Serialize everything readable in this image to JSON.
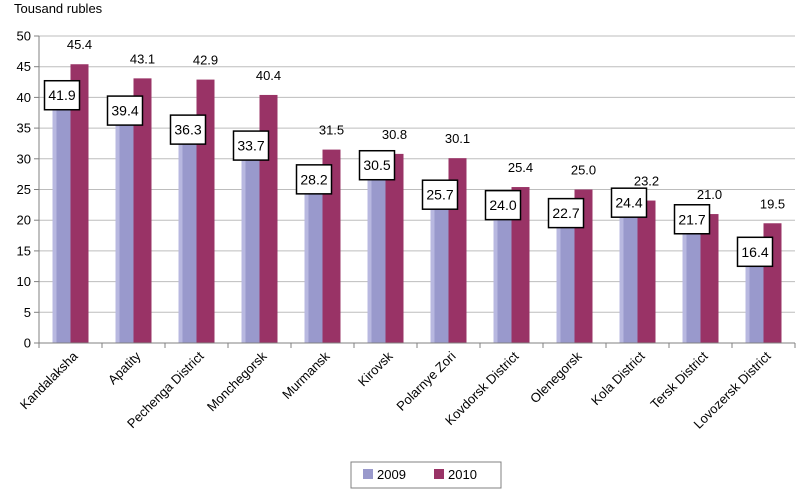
{
  "chart_data": {
    "type": "bar",
    "ylabel": "Tousand rubles",
    "ylim": [
      0,
      50
    ],
    "yticks": [
      "0",
      "5",
      "10",
      "15",
      "20",
      "25",
      "30",
      "35",
      "40",
      "45",
      "50"
    ],
    "categories": [
      "Kandalaksha",
      "Apatity",
      "Pechenga District",
      "Monchegorsk",
      "Murmansk",
      "Kirovsk",
      "Polarnye Zori",
      "Kovdorsk District",
      "Olenegorsk",
      "Kola District",
      "Tersk District",
      "Lovozersk District"
    ],
    "series": [
      {
        "name": "2009",
        "color": "#9999CC",
        "values": [
          41.9,
          39.4,
          36.3,
          33.7,
          28.2,
          30.5,
          25.7,
          24.0,
          22.7,
          24.4,
          21.7,
          16.4
        ],
        "labels": [
          "41.9",
          "39.4",
          "36.3",
          "33.7",
          "28.2",
          "30.5",
          "25.7",
          "24.0",
          "22.7",
          "24.4",
          "21.7",
          "16.4"
        ]
      },
      {
        "name": "2010",
        "color": "#993366",
        "values": [
          45.4,
          43.1,
          42.9,
          40.4,
          31.5,
          30.8,
          30.1,
          25.4,
          25.0,
          23.2,
          21.0,
          19.5
        ],
        "labels": [
          "45.4",
          "43.1",
          "42.9",
          "40.4",
          "31.5",
          "30.8",
          "30.1",
          "25.4",
          "25.0",
          "23.2",
          "21.0",
          "19.5"
        ]
      }
    ],
    "legend_position": "bottom"
  }
}
